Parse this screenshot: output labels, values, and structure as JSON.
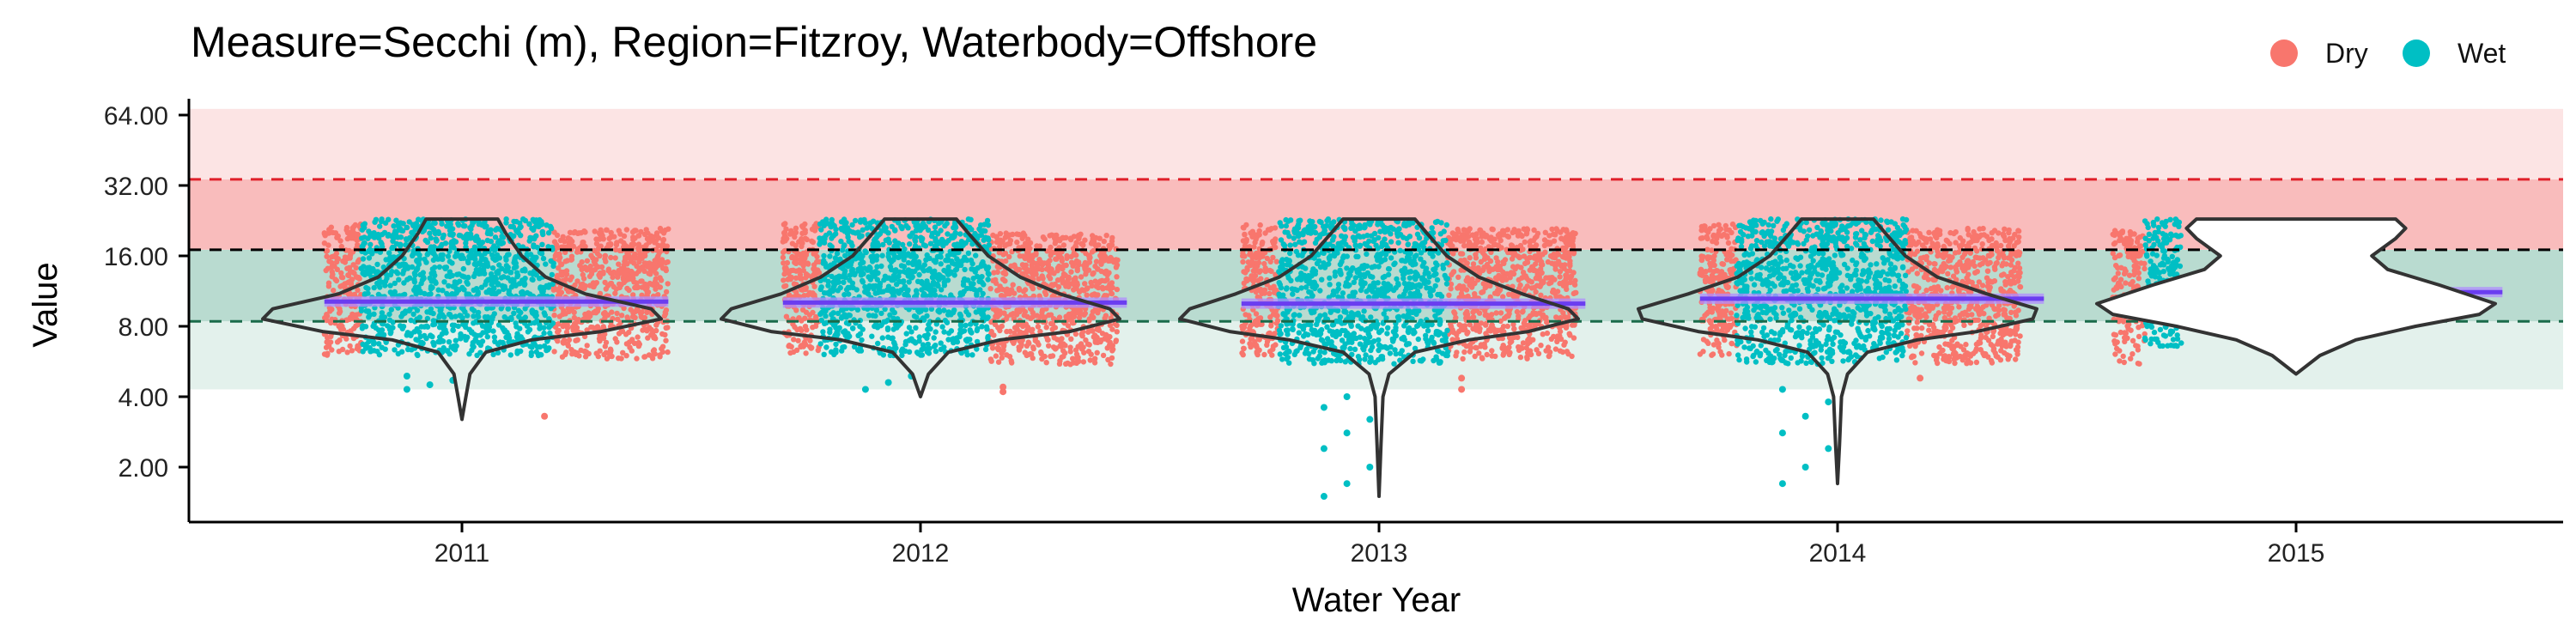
{
  "chart_data": {
    "type": "scatter",
    "title": "Measure=Secchi (m), Region=Fitzroy, Waterbody=Offshore",
    "xlabel": "Water Year",
    "ylabel": "Value",
    "y_scale": "log2",
    "ylim": [
      1.4,
      70
    ],
    "y_ticks": [
      2,
      4,
      8,
      16,
      32,
      64
    ],
    "y_tick_labels": [
      "2.00",
      "4.00",
      "8.00",
      "16.00",
      "32.00",
      "64.00"
    ],
    "categories": [
      "2011",
      "2012",
      "2013",
      "2014",
      "2015"
    ],
    "background_bands": [
      {
        "from": 4.3,
        "to": 8.4,
        "color": "#e3f1ec"
      },
      {
        "from": 8.4,
        "to": 17.0,
        "color": "#b9dbd0"
      },
      {
        "from": 17.0,
        "to": 34.0,
        "color": "#f9bcbc"
      },
      {
        "from": 34.0,
        "to": 68.0,
        "color": "#fce4e4"
      }
    ],
    "reference_lines": [
      {
        "value": 34.0,
        "color": "#e0202a"
      },
      {
        "value": 17.0,
        "color": "#000000"
      },
      {
        "value": 8.4,
        "color": "#1a6b4a"
      }
    ],
    "legend": {
      "position": "top-right",
      "entries": [
        {
          "name": "Dry",
          "color": "#f8766d"
        },
        {
          "name": "Wet",
          "color": "#00bfc4"
        }
      ]
    },
    "series": [
      {
        "name": "Dry",
        "color": "#f8766d"
      },
      {
        "name": "Wet",
        "color": "#00bfc4"
      }
    ],
    "years": [
      {
        "label": "2011",
        "median": 10.2,
        "dry": [
          {
            "x0": 2010.7,
            "x1": 2010.78,
            "lo": 6.0,
            "hi": 22
          },
          {
            "x0": 2011.2,
            "x1": 2011.45,
            "lo": 5.8,
            "hi": 21
          }
        ],
        "wet": [
          {
            "x0": 2010.78,
            "x1": 2011.2,
            "lo": 6.0,
            "hi": 23
          }
        ],
        "outliers_dry": [
          3.3
        ],
        "outliers_wet": [
          4.3,
          4.5,
          4.7,
          4.9
        ],
        "violin": {
          "lo": 3.2,
          "hi": 23,
          "profile": [
            [
              23,
              0.18
            ],
            [
              20,
              0.22
            ],
            [
              16,
              0.3
            ],
            [
              13,
              0.42
            ],
            [
              11,
              0.62
            ],
            [
              9.5,
              0.95
            ],
            [
              8.6,
              1.0
            ],
            [
              7.6,
              0.7
            ],
            [
              7.0,
              0.35
            ],
            [
              6.2,
              0.12
            ],
            [
              5.0,
              0.04
            ],
            [
              4.0,
              0.02
            ],
            [
              3.2,
              0.0
            ]
          ]
        }
      },
      {
        "label": "2012",
        "median": 10.1,
        "dry": [
          {
            "x0": 2011.7,
            "x1": 2011.78,
            "lo": 6.0,
            "hi": 22
          },
          {
            "x0": 2012.15,
            "x1": 2012.43,
            "lo": 5.5,
            "hi": 20
          }
        ],
        "wet": [
          {
            "x0": 2011.78,
            "x1": 2012.15,
            "lo": 6.0,
            "hi": 23
          }
        ],
        "outliers_dry": [
          4.2,
          4.4
        ],
        "outliers_wet": [
          4.3,
          4.6,
          4.9
        ],
        "violin": {
          "lo": 4.0,
          "hi": 23,
          "profile": [
            [
              23,
              0.18
            ],
            [
              20,
              0.24
            ],
            [
              16,
              0.34
            ],
            [
              13,
              0.5
            ],
            [
              11,
              0.7
            ],
            [
              9.5,
              0.95
            ],
            [
              8.6,
              1.0
            ],
            [
              7.6,
              0.75
            ],
            [
              7.0,
              0.4
            ],
            [
              6.2,
              0.14
            ],
            [
              5.0,
              0.04
            ],
            [
              4.0,
              0.0
            ]
          ]
        }
      },
      {
        "label": "2013",
        "median": 10.0,
        "dry": [
          {
            "x0": 2012.7,
            "x1": 2012.78,
            "lo": 6.0,
            "hi": 22
          },
          {
            "x0": 2013.15,
            "x1": 2013.43,
            "lo": 5.8,
            "hi": 21
          }
        ],
        "wet": [
          {
            "x0": 2012.78,
            "x1": 2013.15,
            "lo": 5.5,
            "hi": 23
          }
        ],
        "outliers_dry": [
          4.3,
          4.8
        ],
        "outliers_wet": [
          1.5,
          1.7,
          2.0,
          2.4,
          2.8,
          3.2,
          3.6,
          4.0
        ],
        "violin": {
          "lo": 1.5,
          "hi": 23,
          "profile": [
            [
              23,
              0.18
            ],
            [
              20,
              0.24
            ],
            [
              16,
              0.34
            ],
            [
              13,
              0.5
            ],
            [
              11,
              0.72
            ],
            [
              9.5,
              0.95
            ],
            [
              8.6,
              1.0
            ],
            [
              7.6,
              0.75
            ],
            [
              7.0,
              0.45
            ],
            [
              6.2,
              0.18
            ],
            [
              5.0,
              0.05
            ],
            [
              4.0,
              0.02
            ],
            [
              2.5,
              0.01
            ],
            [
              1.5,
              0.0
            ]
          ]
        }
      },
      {
        "label": "2014",
        "median": 10.5,
        "dry": [
          {
            "x0": 2013.7,
            "x1": 2013.78,
            "lo": 6.0,
            "hi": 22
          },
          {
            "x0": 2014.15,
            "x1": 2014.4,
            "lo": 5.5,
            "hi": 21
          }
        ],
        "wet": [
          {
            "x0": 2013.78,
            "x1": 2014.15,
            "lo": 5.5,
            "hi": 23
          }
        ],
        "outliers_dry": [
          4.8
        ],
        "outliers_wet": [
          1.7,
          2.0,
          2.4,
          2.8,
          3.3,
          3.8,
          4.3
        ],
        "violin": {
          "lo": 1.7,
          "hi": 23,
          "profile": [
            [
              23,
              0.18
            ],
            [
              20,
              0.24
            ],
            [
              16,
              0.34
            ],
            [
              13,
              0.5
            ],
            [
              11,
              0.75
            ],
            [
              9.5,
              1.0
            ],
            [
              8.6,
              0.98
            ],
            [
              7.6,
              0.7
            ],
            [
              7.0,
              0.4
            ],
            [
              6.2,
              0.15
            ],
            [
              5.0,
              0.05
            ],
            [
              4.0,
              0.02
            ],
            [
              2.5,
              0.01
            ],
            [
              1.7,
              0.0
            ]
          ]
        }
      },
      {
        "label": "2015",
        "median": 11.2,
        "dry": [
          {
            "x0": 2014.6,
            "x1": 2014.67,
            "lo": 5.5,
            "hi": 21
          }
        ],
        "wet": [
          {
            "x0": 2014.67,
            "x1": 2014.75,
            "lo": 6.5,
            "hi": 23
          }
        ],
        "outliers_dry": [],
        "outliers_wet": [],
        "violin": {
          "lo": 5.0,
          "hi": 23,
          "profile": [
            [
              23,
              0.5
            ],
            [
              21,
              0.55
            ],
            [
              19,
              0.5
            ],
            [
              16,
              0.38
            ],
            [
              14,
              0.46
            ],
            [
              12,
              0.72
            ],
            [
              10,
              1.0
            ],
            [
              9,
              0.92
            ],
            [
              8,
              0.6
            ],
            [
              7,
              0.3
            ],
            [
              6,
              0.12
            ],
            [
              5,
              0.0
            ]
          ]
        }
      }
    ]
  }
}
